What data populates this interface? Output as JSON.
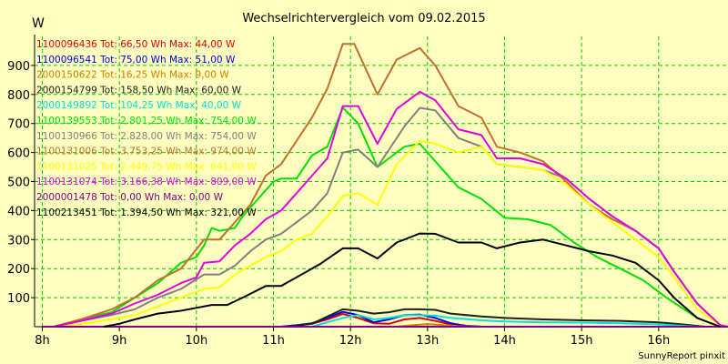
{
  "chart_data": {
    "type": "line",
    "title": "Wechselrichtervergleich vom 09.02.2015",
    "ylabel": "W",
    "credit": "SunnyReport pinxit",
    "xlim": [
      7.9,
      16.9
    ],
    "ylim": [
      0,
      1000
    ],
    "yticks": [
      100,
      200,
      300,
      400,
      500,
      600,
      700,
      800,
      900
    ],
    "xticks": [
      {
        "v": 8,
        "label": "8h"
      },
      {
        "v": 9,
        "label": "9h"
      },
      {
        "v": 10,
        "label": "10h"
      },
      {
        "v": 11,
        "label": "11h"
      },
      {
        "v": 12,
        "label": "12h"
      },
      {
        "v": 13,
        "label": "13h"
      },
      {
        "v": 14,
        "label": "14h"
      },
      {
        "v": 15,
        "label": "15h"
      },
      {
        "v": 16,
        "label": "16h"
      }
    ],
    "grid": true,
    "legend_position": "top-left",
    "series": [
      {
        "name": "1100096436 Tot: 66,50 Wh Max: 44,00 W",
        "color": "#e00000",
        "points": [
          [
            11.1,
            0
          ],
          [
            11.3,
            5
          ],
          [
            11.5,
            10
          ],
          [
            11.7,
            25
          ],
          [
            11.9,
            44
          ],
          [
            12.1,
            30
          ],
          [
            12.3,
            12
          ],
          [
            12.5,
            10
          ],
          [
            12.7,
            25
          ],
          [
            12.9,
            30
          ],
          [
            13.1,
            20
          ],
          [
            13.3,
            8
          ],
          [
            13.5,
            2
          ],
          [
            13.7,
            0
          ]
        ]
      },
      {
        "name": "1100096541 Tot: 75,00 Wh Max: 51,00 W",
        "color": "#0000e0",
        "points": [
          [
            11.1,
            0
          ],
          [
            11.3,
            5
          ],
          [
            11.5,
            12
          ],
          [
            11.7,
            30
          ],
          [
            11.9,
            51
          ],
          [
            12.1,
            40
          ],
          [
            12.3,
            15
          ],
          [
            12.5,
            25
          ],
          [
            12.7,
            40
          ],
          [
            12.9,
            42
          ],
          [
            13.1,
            30
          ],
          [
            13.3,
            12
          ],
          [
            13.5,
            3
          ],
          [
            13.7,
            0
          ]
        ]
      },
      {
        "name": "2000150622 Tot: 16,25 Wh Max: 9,00 W",
        "color": "#d08000",
        "points": [
          [
            12.6,
            0
          ],
          [
            12.8,
            5
          ],
          [
            13.0,
            9
          ],
          [
            13.2,
            6
          ],
          [
            13.4,
            2
          ],
          [
            13.6,
            0
          ]
        ]
      },
      {
        "name": "2000154799 Tot: 158,50 Wh Max: 60,00 W",
        "color": "#202020",
        "points": [
          [
            11.2,
            0
          ],
          [
            11.5,
            10
          ],
          [
            11.9,
            60
          ],
          [
            12.1,
            55
          ],
          [
            12.3,
            45
          ],
          [
            12.5,
            50
          ],
          [
            12.7,
            60
          ],
          [
            12.9,
            60
          ],
          [
            13.1,
            58
          ],
          [
            13.3,
            45
          ],
          [
            13.7,
            35
          ],
          [
            14.0,
            30
          ],
          [
            14.5,
            25
          ],
          [
            15.0,
            22
          ],
          [
            15.5,
            20
          ],
          [
            16.0,
            15
          ],
          [
            16.3,
            8
          ],
          [
            16.6,
            0
          ]
        ]
      },
      {
        "name": "2000149892 Tot: 104,25 Wh Max: 40,00 W",
        "color": "#00e0e0",
        "points": [
          [
            11.5,
            0
          ],
          [
            11.7,
            15
          ],
          [
            11.9,
            30
          ],
          [
            12.1,
            40
          ],
          [
            12.3,
            25
          ],
          [
            12.5,
            30
          ],
          [
            12.7,
            40
          ],
          [
            12.9,
            40
          ],
          [
            13.1,
            38
          ],
          [
            13.3,
            30
          ],
          [
            13.7,
            22
          ],
          [
            14.0,
            18
          ],
          [
            14.5,
            15
          ],
          [
            15.0,
            14
          ],
          [
            15.5,
            12
          ],
          [
            16.0,
            8
          ],
          [
            16.3,
            3
          ],
          [
            16.5,
            0
          ]
        ]
      },
      {
        "name": "1100139553 Tot: 2.801,25 Wh Max: 754,00 W",
        "color": "#00e000",
        "points": [
          [
            8.15,
            0
          ],
          [
            8.5,
            25
          ],
          [
            8.9,
            50
          ],
          [
            9.2,
            100
          ],
          [
            9.5,
            150
          ],
          [
            9.8,
            220
          ],
          [
            10.0,
            240
          ],
          [
            10.1,
            280
          ],
          [
            10.2,
            340
          ],
          [
            10.3,
            330
          ],
          [
            10.5,
            340
          ],
          [
            10.6,
            380
          ],
          [
            10.8,
            440
          ],
          [
            11.0,
            500
          ],
          [
            11.1,
            510
          ],
          [
            11.3,
            510
          ],
          [
            11.5,
            590
          ],
          [
            11.7,
            620
          ],
          [
            11.9,
            755
          ],
          [
            12.1,
            700
          ],
          [
            12.35,
            550
          ],
          [
            12.7,
            620
          ],
          [
            12.9,
            630
          ],
          [
            13.1,
            570
          ],
          [
            13.4,
            480
          ],
          [
            13.7,
            440
          ],
          [
            14.0,
            375
          ],
          [
            14.3,
            370
          ],
          [
            14.6,
            350
          ],
          [
            14.9,
            290
          ],
          [
            15.2,
            240
          ],
          [
            15.5,
            200
          ],
          [
            15.8,
            160
          ],
          [
            16.1,
            100
          ],
          [
            16.5,
            30
          ],
          [
            16.8,
            0
          ]
        ]
      },
      {
        "name": "1100130966 Tot: 2.828,00 Wh Max: 754,00 W",
        "color": "#808080",
        "points": [
          [
            8.15,
            0
          ],
          [
            8.5,
            20
          ],
          [
            8.9,
            40
          ],
          [
            9.2,
            60
          ],
          [
            9.5,
            100
          ],
          [
            9.8,
            130
          ],
          [
            10.1,
            180
          ],
          [
            10.3,
            180
          ],
          [
            10.5,
            210
          ],
          [
            10.7,
            260
          ],
          [
            10.9,
            300
          ],
          [
            11.1,
            320
          ],
          [
            11.3,
            360
          ],
          [
            11.5,
            400
          ],
          [
            11.7,
            460
          ],
          [
            11.9,
            600
          ],
          [
            12.1,
            610
          ],
          [
            12.35,
            550
          ],
          [
            12.7,
            690
          ],
          [
            12.9,
            754
          ],
          [
            13.1,
            745
          ],
          [
            13.4,
            650
          ],
          [
            13.7,
            620
          ],
          [
            13.9,
            560
          ],
          [
            14.2,
            550
          ],
          [
            14.5,
            540
          ],
          [
            14.8,
            510
          ],
          [
            15.1,
            440
          ],
          [
            15.4,
            380
          ],
          [
            15.7,
            330
          ],
          [
            16.0,
            270
          ],
          [
            16.2,
            190
          ],
          [
            16.5,
            80
          ],
          [
            16.8,
            5
          ],
          [
            16.9,
            0
          ]
        ]
      },
      {
        "name": "1100131006 Tot: 3.753,25 Wh Max: 974,00 W",
        "color": "#c07030",
        "points": [
          [
            8.15,
            0
          ],
          [
            8.5,
            25
          ],
          [
            8.9,
            60
          ],
          [
            9.2,
            100
          ],
          [
            9.5,
            160
          ],
          [
            9.8,
            200
          ],
          [
            10.1,
            300
          ],
          [
            10.3,
            300
          ],
          [
            10.5,
            360
          ],
          [
            10.7,
            420
          ],
          [
            10.9,
            520
          ],
          [
            11.1,
            560
          ],
          [
            11.3,
            640
          ],
          [
            11.5,
            720
          ],
          [
            11.7,
            820
          ],
          [
            11.9,
            974
          ],
          [
            12.05,
            974
          ],
          [
            12.35,
            800
          ],
          [
            12.6,
            920
          ],
          [
            12.9,
            960
          ],
          [
            13.1,
            900
          ],
          [
            13.4,
            760
          ],
          [
            13.7,
            720
          ],
          [
            13.9,
            620
          ],
          [
            14.2,
            600
          ],
          [
            14.5,
            570
          ],
          [
            14.8,
            500
          ],
          [
            15.1,
            420
          ],
          [
            15.4,
            370
          ],
          [
            15.7,
            330
          ],
          [
            16.0,
            270
          ],
          [
            16.2,
            190
          ],
          [
            16.5,
            80
          ],
          [
            16.8,
            5
          ],
          [
            16.9,
            0
          ]
        ]
      },
      {
        "name": "1100131025 Tot: 2.449,75 Wh Max: 641,00 W",
        "color": "#ffff00",
        "points": [
          [
            8.15,
            0
          ],
          [
            8.5,
            10
          ],
          [
            8.9,
            25
          ],
          [
            9.2,
            40
          ],
          [
            9.5,
            70
          ],
          [
            9.8,
            100
          ],
          [
            10.1,
            130
          ],
          [
            10.3,
            135
          ],
          [
            10.5,
            180
          ],
          [
            10.7,
            210
          ],
          [
            10.9,
            240
          ],
          [
            11.1,
            260
          ],
          [
            11.3,
            300
          ],
          [
            11.5,
            320
          ],
          [
            11.7,
            380
          ],
          [
            11.9,
            450
          ],
          [
            12.1,
            460
          ],
          [
            12.35,
            420
          ],
          [
            12.6,
            560
          ],
          [
            12.9,
            640
          ],
          [
            13.1,
            630
          ],
          [
            13.4,
            600
          ],
          [
            13.7,
            620
          ],
          [
            13.9,
            560
          ],
          [
            14.2,
            550
          ],
          [
            14.5,
            540
          ],
          [
            14.8,
            490
          ],
          [
            15.1,
            420
          ],
          [
            15.4,
            360
          ],
          [
            15.7,
            300
          ],
          [
            16.0,
            240
          ],
          [
            16.2,
            170
          ],
          [
            16.5,
            60
          ],
          [
            16.8,
            5
          ],
          [
            16.9,
            0
          ]
        ]
      },
      {
        "name": "1100131074 Tot: 3.166,38 Wh Max: 809,00 W",
        "color": "#e000e0",
        "points": [
          [
            8.15,
            0
          ],
          [
            8.5,
            20
          ],
          [
            8.9,
            45
          ],
          [
            9.2,
            80
          ],
          [
            9.5,
            110
          ],
          [
            9.8,
            150
          ],
          [
            10.0,
            170
          ],
          [
            10.1,
            220
          ],
          [
            10.3,
            225
          ],
          [
            10.5,
            280
          ],
          [
            10.7,
            320
          ],
          [
            10.9,
            370
          ],
          [
            11.1,
            400
          ],
          [
            11.3,
            460
          ],
          [
            11.5,
            520
          ],
          [
            11.7,
            580
          ],
          [
            11.9,
            760
          ],
          [
            12.1,
            760
          ],
          [
            12.35,
            630
          ],
          [
            12.6,
            750
          ],
          [
            12.9,
            809
          ],
          [
            13.1,
            780
          ],
          [
            13.4,
            680
          ],
          [
            13.7,
            660
          ],
          [
            13.9,
            580
          ],
          [
            14.2,
            580
          ],
          [
            14.5,
            560
          ],
          [
            14.8,
            510
          ],
          [
            15.1,
            440
          ],
          [
            15.4,
            380
          ],
          [
            15.7,
            330
          ],
          [
            16.0,
            270
          ],
          [
            16.2,
            190
          ],
          [
            16.5,
            80
          ],
          [
            16.8,
            5
          ],
          [
            16.9,
            0
          ]
        ]
      },
      {
        "name": "2000001478 Tot: 0,00 Wh Max: 0,00 W",
        "color": "#800080",
        "points": [
          [
            8.0,
            0
          ],
          [
            16.9,
            0
          ]
        ]
      },
      {
        "name": "1100213451 Tot: 1.394,50 Wh Max: 321,00 W",
        "color": "#000000",
        "points": [
          [
            8.8,
            0
          ],
          [
            9.0,
            10
          ],
          [
            9.2,
            25
          ],
          [
            9.5,
            45
          ],
          [
            9.8,
            55
          ],
          [
            10.0,
            65
          ],
          [
            10.2,
            75
          ],
          [
            10.4,
            75
          ],
          [
            10.6,
            100
          ],
          [
            10.9,
            140
          ],
          [
            11.1,
            140
          ],
          [
            11.4,
            185
          ],
          [
            11.6,
            215
          ],
          [
            11.9,
            270
          ],
          [
            12.1,
            270
          ],
          [
            12.35,
            235
          ],
          [
            12.6,
            290
          ],
          [
            12.9,
            321
          ],
          [
            13.1,
            320
          ],
          [
            13.4,
            290
          ],
          [
            13.7,
            290
          ],
          [
            13.9,
            270
          ],
          [
            14.2,
            290
          ],
          [
            14.5,
            300
          ],
          [
            14.8,
            280
          ],
          [
            15.1,
            260
          ],
          [
            15.4,
            245
          ],
          [
            15.7,
            220
          ],
          [
            16.0,
            160
          ],
          [
            16.2,
            100
          ],
          [
            16.5,
            30
          ],
          [
            16.8,
            0
          ]
        ]
      }
    ]
  }
}
